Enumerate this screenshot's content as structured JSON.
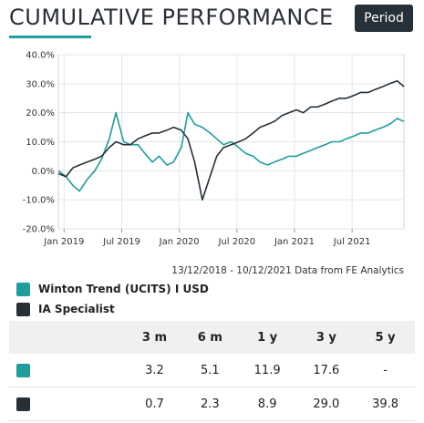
{
  "header": {
    "title": "CUMULATIVE PERFORMANCE",
    "period_label": "Period"
  },
  "colors": {
    "fund": "#1f9c9c",
    "sector": "#263038",
    "accent": "#1f9c9c"
  },
  "chart_data": {
    "type": "line",
    "title": "",
    "xlabel": "",
    "ylabel": "",
    "ylim": [
      -20,
      40
    ],
    "yticks": [
      40,
      30,
      20,
      10,
      0,
      -10,
      -20
    ],
    "ytick_labels": [
      "40.0%",
      "30.0%",
      "20.0%",
      "10.0%",
      "0.0%",
      "-10.0%",
      "-20.0%"
    ],
    "xlim": [
      0,
      36
    ],
    "xticks": [
      0.6,
      6.6,
      12.6,
      18.6,
      24.6,
      30.6
    ],
    "xtick_labels": [
      "Jan 2019",
      "Jul 2019",
      "Jan 2020",
      "Jul 2020",
      "Jan 2021",
      "Jul 2021"
    ],
    "grid": true,
    "legend": "below",
    "series": [
      {
        "name": "Winton Trend (UCITS) I USD",
        "x": [
          0,
          0.8,
          1.5,
          2.2,
          3,
          3.8,
          4.5,
          5.3,
          6,
          6.8,
          7.5,
          8.3,
          9,
          9.8,
          10.5,
          11.3,
          12,
          12.8,
          13.5,
          14.2,
          15,
          15.8,
          16.5,
          17.2,
          18,
          18.8,
          19.5,
          20.3,
          21,
          21.8,
          22.5,
          23.3,
          24,
          24.8,
          25.5,
          26.3,
          27,
          27.8,
          28.5,
          29.3,
          30,
          30.8,
          31.5,
          32.3,
          33,
          33.8,
          34.5,
          35.3,
          36
        ],
        "values": [
          0,
          -2,
          -5,
          -7,
          -3,
          0,
          4,
          11,
          20,
          10,
          9,
          9,
          6,
          3,
          5,
          2,
          3,
          8,
          20,
          16,
          15,
          13,
          11,
          9,
          10,
          8,
          6,
          5,
          3,
          2,
          3,
          4,
          5,
          5,
          6,
          7,
          8,
          9,
          10,
          10,
          11,
          12,
          13,
          13,
          14,
          15,
          16,
          18,
          17
        ]
      },
      {
        "name": "IA Specialist",
        "x": [
          0,
          0.8,
          1.5,
          2.2,
          3,
          3.8,
          4.5,
          5.3,
          6,
          6.8,
          7.5,
          8.3,
          9,
          9.8,
          10.5,
          11.3,
          12,
          12.8,
          13.5,
          14.2,
          15,
          15.8,
          16.5,
          17.2,
          18,
          18.8,
          19.5,
          20.3,
          21,
          21.8,
          22.5,
          23.3,
          24,
          24.8,
          25.5,
          26.3,
          27,
          27.8,
          28.5,
          29.3,
          30,
          30.8,
          31.5,
          32.3,
          33,
          33.8,
          34.5,
          35.3,
          36
        ],
        "values": [
          -1,
          -2,
          1,
          2,
          3,
          4,
          5,
          8,
          10,
          9,
          9,
          11,
          12,
          13,
          13,
          14,
          15,
          14,
          11,
          3,
          -10,
          -2,
          5,
          8,
          9,
          10,
          11,
          13,
          15,
          16,
          17,
          19,
          20,
          21,
          20,
          22,
          22,
          23,
          24,
          25,
          25,
          26,
          27,
          27,
          28,
          29,
          30,
          31,
          29
        ]
      }
    ]
  },
  "date_range_text": "13/12/2018 - 10/12/2021 Data from FE Analytics",
  "legend": [
    {
      "name": "Winton Trend (UCITS) I USD",
      "color": "#1f9c9c"
    },
    {
      "name": "IA Specialist",
      "color": "#263038"
    }
  ],
  "table": {
    "headers": [
      "",
      "3 m",
      "6 m",
      "1 y",
      "3 y",
      "5 y"
    ],
    "rows": [
      {
        "color": "#1f9c9c",
        "values": [
          "3.2",
          "5.1",
          "11.9",
          "17.6",
          "-"
        ]
      },
      {
        "color": "#263038",
        "values": [
          "0.7",
          "2.3",
          "8.9",
          "29.0",
          "39.8"
        ]
      }
    ]
  }
}
